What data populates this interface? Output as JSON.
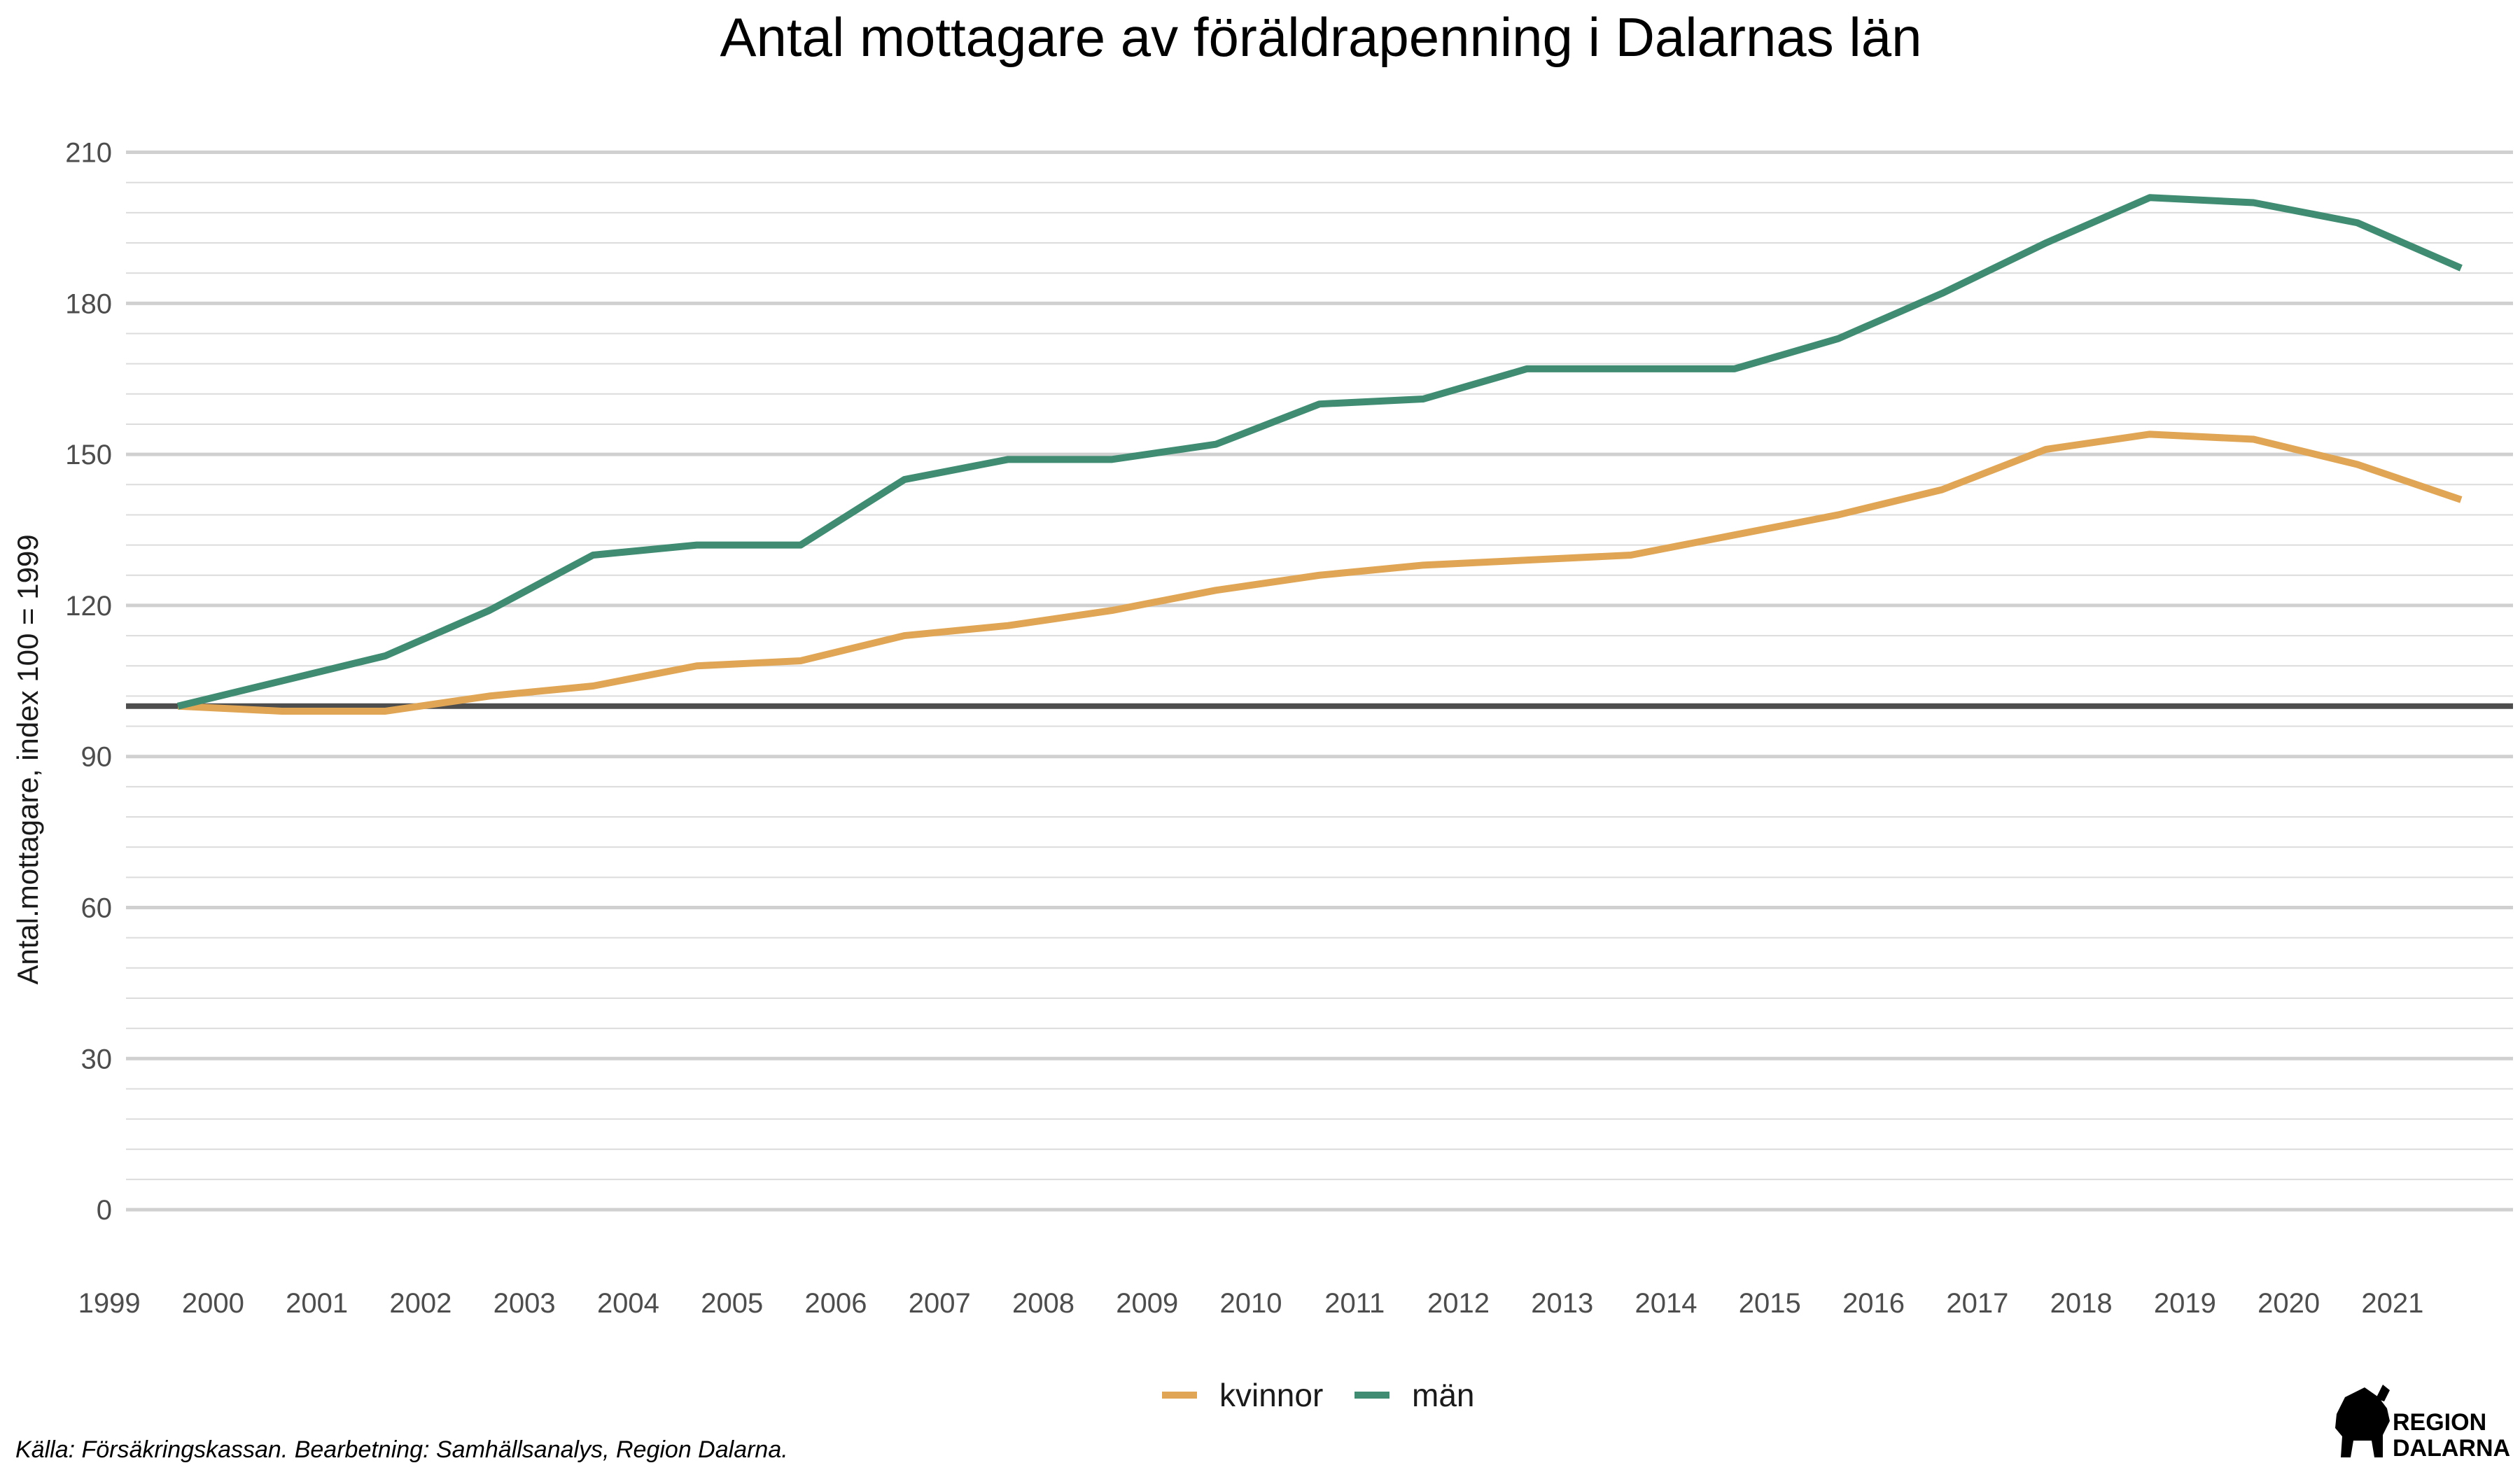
{
  "chart_data": {
    "type": "line",
    "title": "Antal mottagare av föräldrapenning i Dalarnas län",
    "ylabel": "Antal.mottagare, index 100 = 1999",
    "xlabel": "",
    "x": [
      "1999",
      "2000",
      "2001",
      "2002",
      "2003",
      "2004",
      "2005",
      "2006",
      "2007",
      "2008",
      "2009",
      "2010",
      "2011",
      "2012",
      "2013",
      "2014",
      "2015",
      "2016",
      "2017",
      "2018",
      "2019",
      "2020",
      "2021"
    ],
    "xlim": [
      1998.5,
      2021.5
    ],
    "ylim": [
      -10,
      218
    ],
    "yticks": [
      0,
      30,
      60,
      90,
      120,
      150,
      180,
      210
    ],
    "ytick_labels": [
      "0",
      "30",
      "60",
      "90",
      "120",
      "150",
      "180",
      "210"
    ],
    "minor_grid_step": 6,
    "reference_line": 100,
    "grid": true,
    "legend_position": "bottom",
    "series": [
      {
        "name": "kvinnor",
        "color": "#E0A655",
        "values": [
          100,
          99,
          99,
          102,
          104,
          108,
          109,
          114,
          116,
          119,
          123,
          126,
          128,
          129,
          130,
          134,
          138,
          143,
          151,
          154,
          153,
          148,
          141
        ]
      },
      {
        "name": "män",
        "color": "#3F8C72",
        "values": [
          100,
          105,
          110,
          119,
          130,
          132,
          132,
          145,
          149,
          149,
          152,
          160,
          161,
          167,
          167,
          167,
          173,
          182,
          192,
          201,
          200,
          196,
          187
        ]
      }
    ]
  },
  "colors": {
    "grid_major": "#d0d0d0",
    "grid_minor": "#dcdcdc",
    "reference_line": "#4d4d4d"
  },
  "caption": "Källa: Försäkringskassan. Bearbetning: Samhällsanalys, Region Dalarna.",
  "logo": {
    "line1": "REGION",
    "line2": "DALARNA",
    "icon": "dala-horse-icon"
  }
}
